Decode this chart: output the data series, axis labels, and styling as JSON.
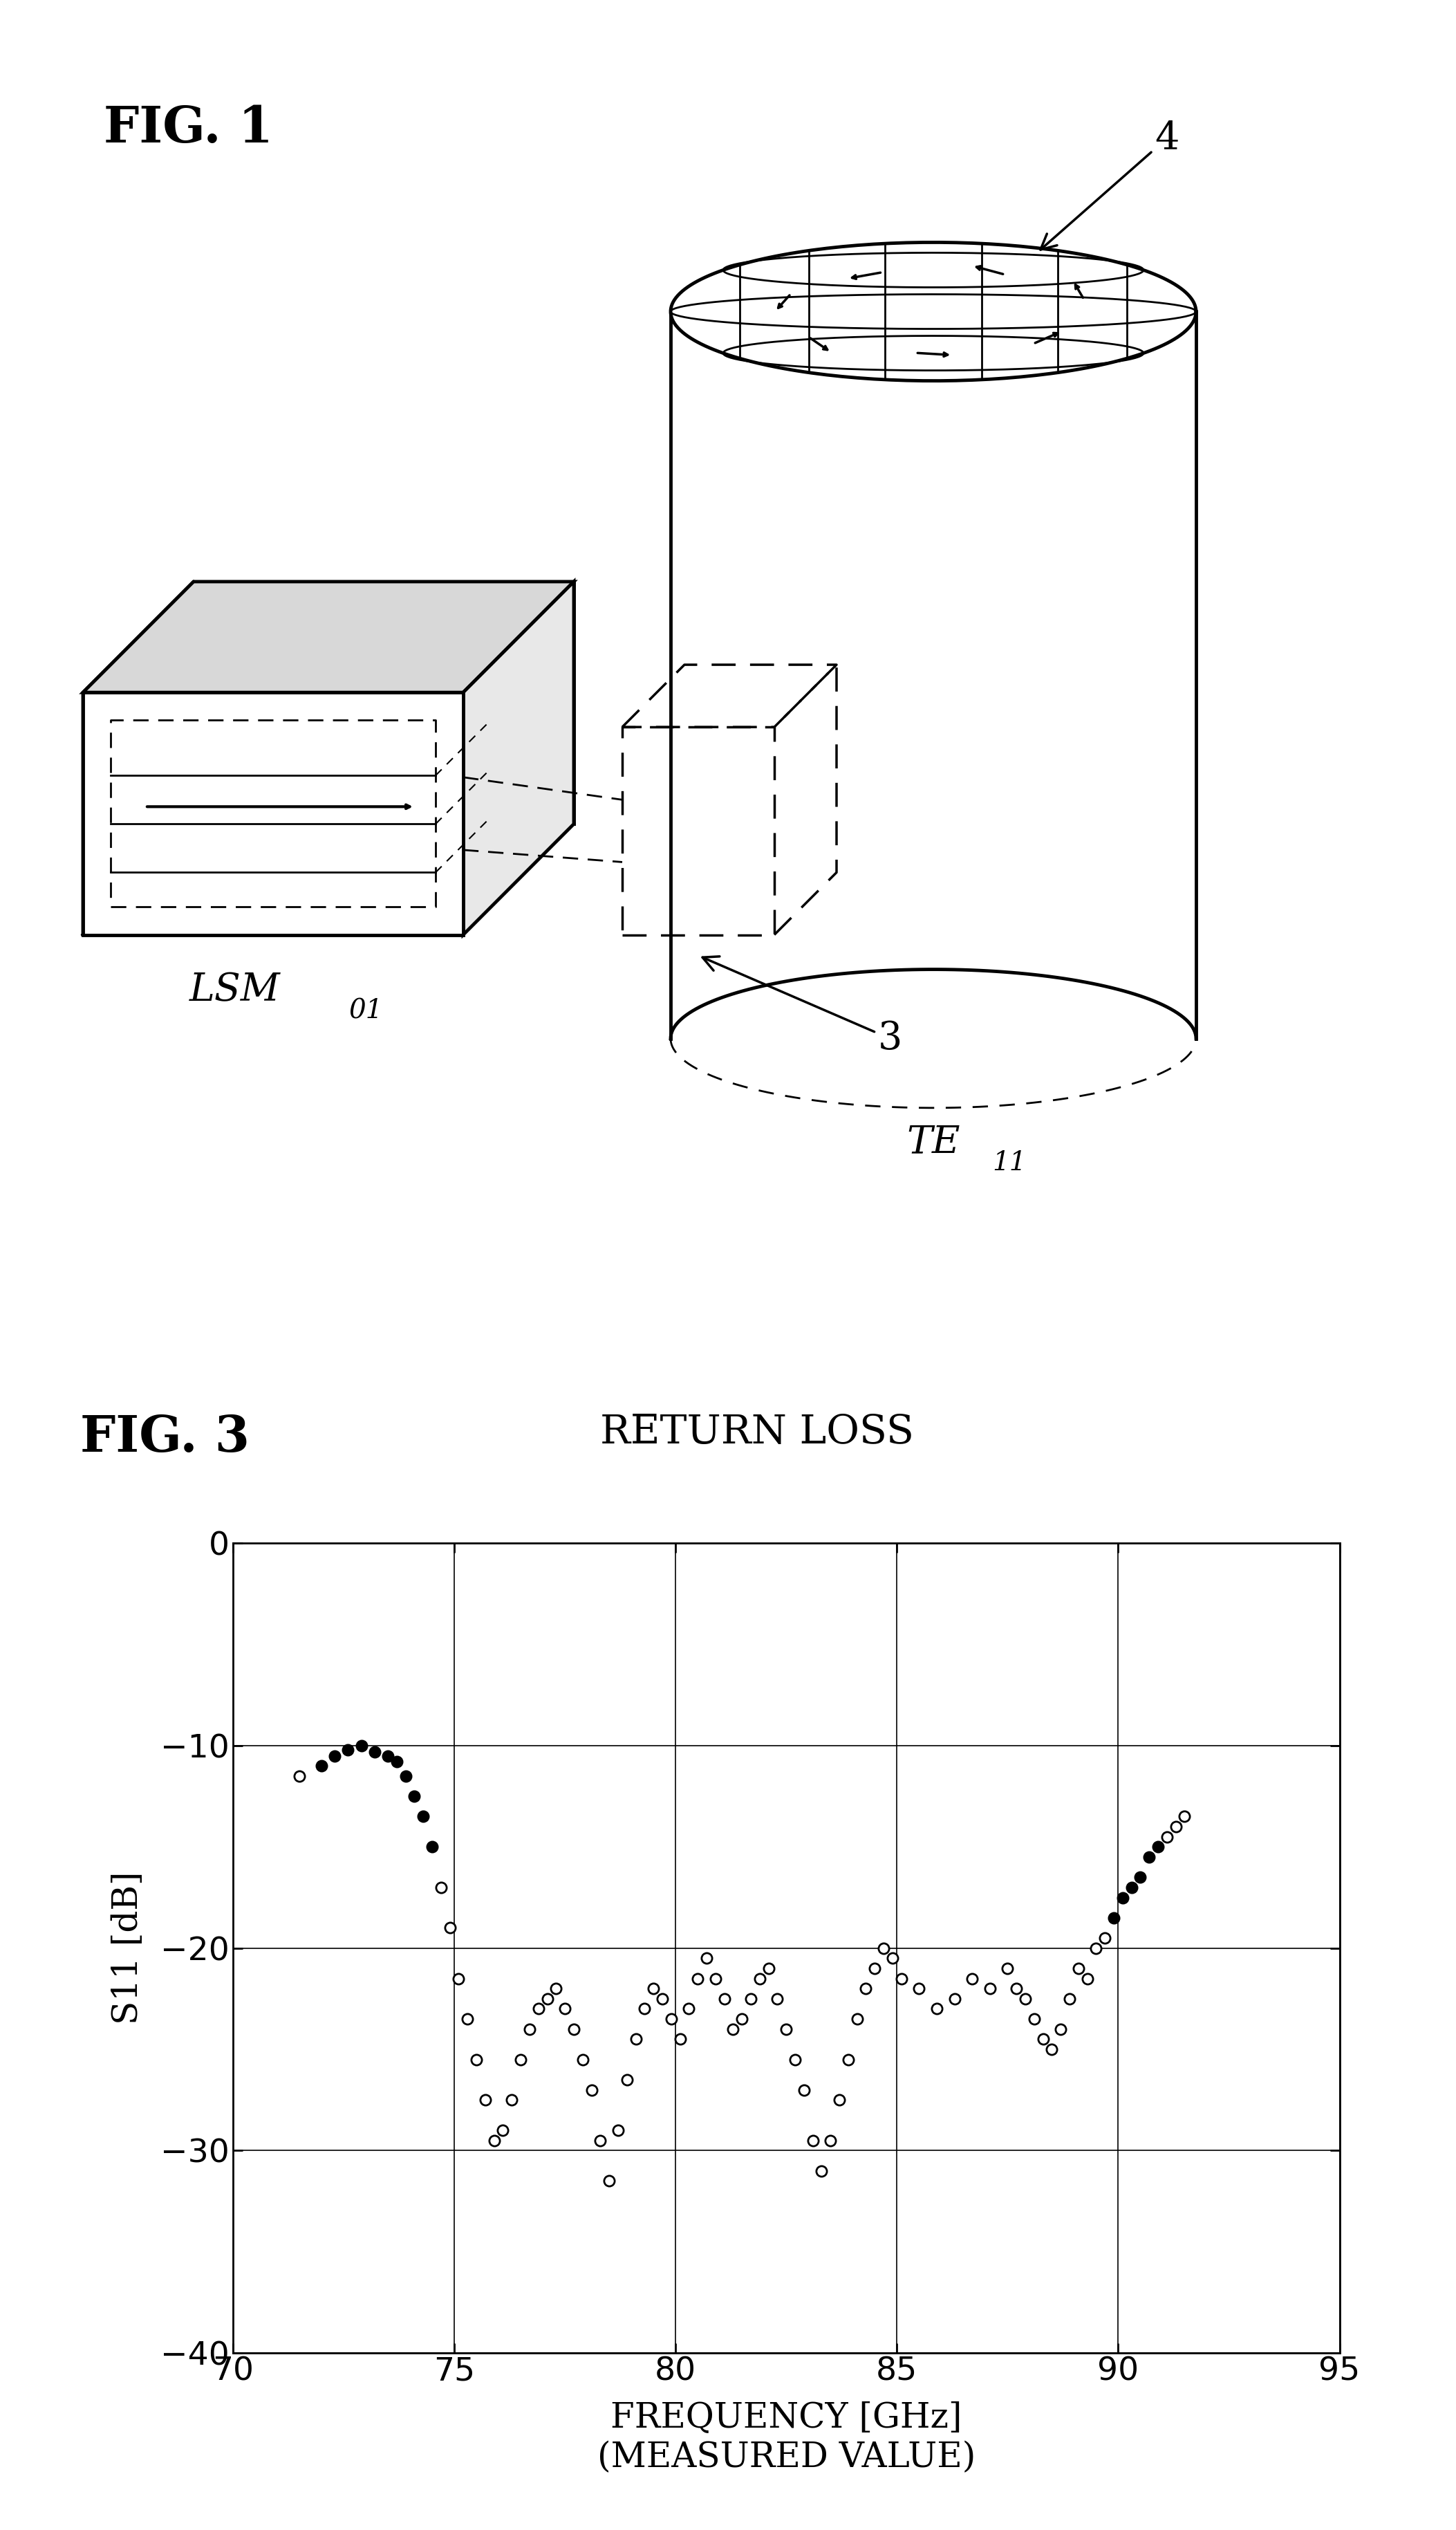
{
  "fig1_label": "FIG. 1",
  "fig3_label": "FIG. 3",
  "chart_title": "RETURN LOSS",
  "xlabel": "FREQUENCY [GHz]",
  "xlabel2": "(MEASURED VALUE)",
  "ylabel": "S11 [dB]",
  "xlim": [
    70,
    95
  ],
  "ylim": [
    -40,
    0
  ],
  "xticks": [
    70,
    75,
    80,
    85,
    90,
    95
  ],
  "yticks": [
    0,
    -10,
    -20,
    -30,
    -40
  ],
  "lsm_label": "LSM",
  "lsm_sub": "01",
  "te_label": "TE",
  "te_sub": "11",
  "label_4": "4",
  "label_3": "3",
  "scatter_freq": [
    71.5,
    72.0,
    72.3,
    72.6,
    72.9,
    73.2,
    73.5,
    73.7,
    73.9,
    74.1,
    74.3,
    74.5,
    74.7,
    74.9,
    75.1,
    75.3,
    75.5,
    75.7,
    75.9,
    76.1,
    76.3,
    76.5,
    76.7,
    76.9,
    77.1,
    77.3,
    77.5,
    77.7,
    77.9,
    78.1,
    78.3,
    78.5,
    78.7,
    78.9,
    79.1,
    79.3,
    79.5,
    79.7,
    79.9,
    80.1,
    80.3,
    80.5,
    80.7,
    80.9,
    81.1,
    81.3,
    81.5,
    81.7,
    81.9,
    82.1,
    82.3,
    82.5,
    82.7,
    82.9,
    83.1,
    83.3,
    83.5,
    83.7,
    83.9,
    84.1,
    84.3,
    84.5,
    84.7,
    84.9,
    85.1,
    85.5,
    85.9,
    86.3,
    86.7,
    87.1,
    87.5,
    87.7,
    87.9,
    88.1,
    88.3,
    88.5,
    88.7,
    88.9,
    89.1,
    89.3,
    89.5,
    89.7,
    89.9,
    90.1,
    90.3,
    90.5,
    90.7,
    90.9,
    91.1,
    91.3,
    91.5
  ],
  "scatter_s11": [
    -11.5,
    -11.0,
    -10.5,
    -10.2,
    -10.0,
    -10.3,
    -10.5,
    -10.8,
    -11.5,
    -12.5,
    -13.5,
    -15.0,
    -17.0,
    -19.0,
    -21.5,
    -23.5,
    -25.5,
    -27.5,
    -29.5,
    -29.0,
    -27.5,
    -25.5,
    -24.0,
    -23.0,
    -22.5,
    -22.0,
    -23.0,
    -24.0,
    -25.5,
    -27.0,
    -29.5,
    -31.5,
    -29.0,
    -26.5,
    -24.5,
    -23.0,
    -22.0,
    -22.5,
    -23.5,
    -24.5,
    -23.0,
    -21.5,
    -20.5,
    -21.5,
    -22.5,
    -24.0,
    -23.5,
    -22.5,
    -21.5,
    -21.0,
    -22.5,
    -24.0,
    -25.5,
    -27.0,
    -29.5,
    -31.0,
    -29.5,
    -27.5,
    -25.5,
    -23.5,
    -22.0,
    -21.0,
    -20.0,
    -20.5,
    -21.5,
    -22.0,
    -23.0,
    -22.5,
    -21.5,
    -22.0,
    -21.0,
    -22.0,
    -22.5,
    -23.5,
    -24.5,
    -25.0,
    -24.0,
    -22.5,
    -21.0,
    -21.5,
    -20.0,
    -19.5,
    -18.5,
    -17.5,
    -17.0,
    -16.5,
    -15.5,
    -15.0,
    -14.5,
    -14.0,
    -13.5
  ],
  "background_color": "#ffffff"
}
